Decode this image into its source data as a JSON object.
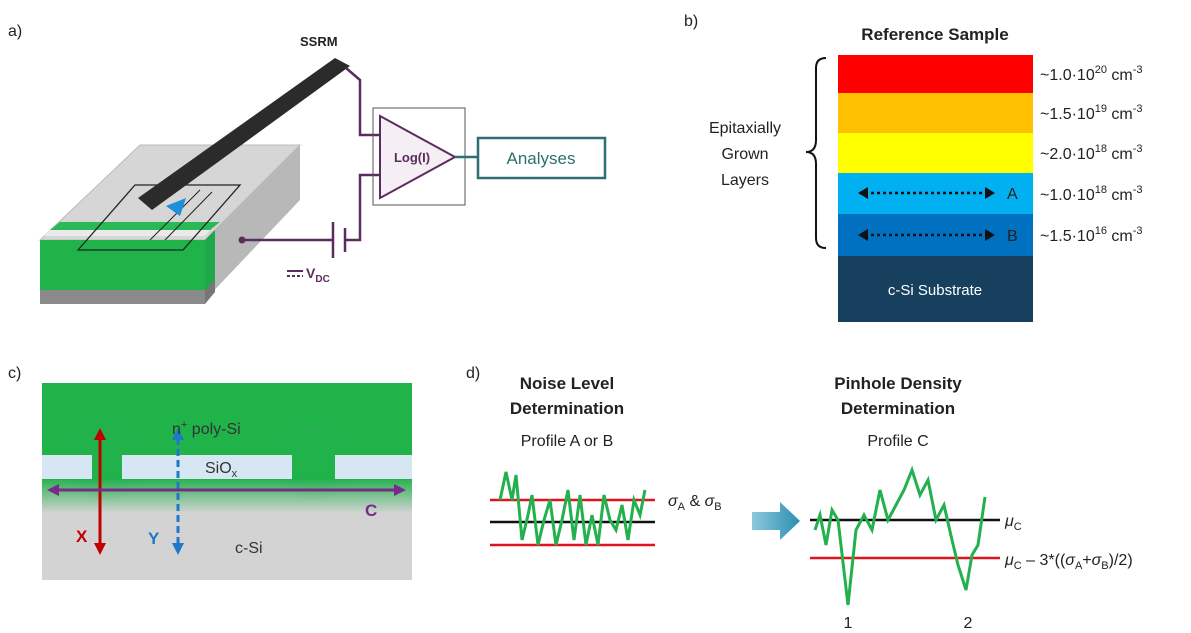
{
  "panel_a": {
    "label": "a)",
    "probe": "SSRM",
    "amplifier": "Log(I)",
    "output": "Analyses",
    "voltage": [
      "V",
      "DC"
    ]
  },
  "panel_b": {
    "label": "b)",
    "title": "Reference Sample",
    "bracket_label": [
      "Epitaxially",
      "Grown",
      "Layers"
    ],
    "layers": [
      {
        "base": "~1.0·10",
        "exponent": "20",
        "unit": " cm",
        "unit_exponent": "-3"
      },
      {
        "base": "~1.5·10",
        "exponent": "19",
        "unit": " cm",
        "unit_exponent": "-3"
      },
      {
        "base": "~2.0·10",
        "exponent": "18",
        "unit": " cm",
        "unit_exponent": "-3"
      },
      {
        "base": "~1.0·10",
        "exponent": "18",
        "unit": " cm",
        "unit_exponent": "-3"
      },
      {
        "base": "~1.5·10",
        "exponent": "16",
        "unit": " cm",
        "unit_exponent": "-3"
      }
    ],
    "profiles": [
      "A",
      "B"
    ],
    "substrate": "c-Si Substrate"
  },
  "panel_c": {
    "label": "c)",
    "poly": [
      "n",
      "+",
      " poly-Si"
    ],
    "oxide": [
      "SiO",
      "x"
    ],
    "profiles": [
      "X",
      "Y",
      "C"
    ],
    "bulk": "c-Si"
  },
  "panel_d": {
    "label": "d)",
    "left_title": [
      "Noise Level",
      "Determination"
    ],
    "left_subtitle": "Profile A or B",
    "sigma_label": [
      "σ",
      "A",
      " & ",
      "σ",
      "B"
    ],
    "right_title": [
      "Pinhole Density",
      "Determination"
    ],
    "right_subtitle": "Profile C",
    "mean_label": [
      "μ",
      "C"
    ],
    "threshold_label": [
      "μ",
      "C",
      " – 3*((",
      "σ",
      "A",
      "+",
      "σ",
      "B",
      ")/2)"
    ],
    "pinholes": [
      "1",
      "2"
    ]
  }
}
